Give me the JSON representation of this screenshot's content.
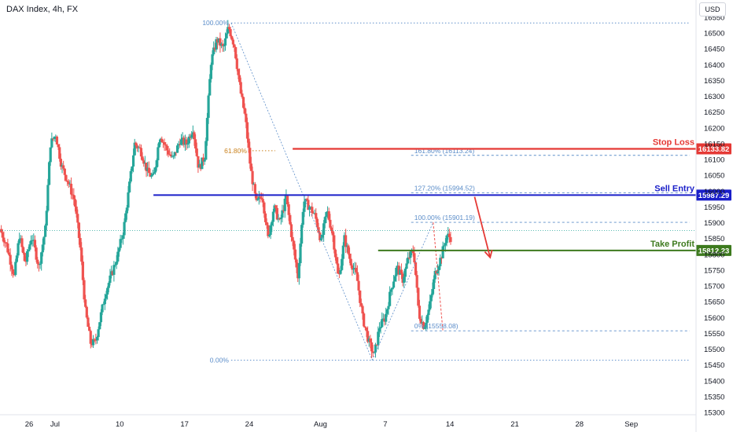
{
  "header": {
    "title": "DAX Index, 4h, FX",
    "currency": "USD"
  },
  "colors": {
    "up": "#26a69a",
    "down": "#ef5350",
    "stop": "#e53935",
    "entry": "#1a1fc9",
    "profit": "#3d7a1e",
    "fib": "#5b8dc9",
    "fib618": "#c9801a",
    "arrow": "#e53935"
  },
  "chart_data": {
    "type": "candlestick",
    "instrument": "DAX Index",
    "timeframe": "4h",
    "x_ticks": [
      {
        "label": "26",
        "x": 0
      },
      {
        "label": "Jul",
        "x": 4
      },
      {
        "label": "10",
        "x": 14
      },
      {
        "label": "17",
        "x": 24
      },
      {
        "label": "24",
        "x": 34
      },
      {
        "label": "Aug",
        "x": 45
      },
      {
        "label": "7",
        "x": 55
      },
      {
        "label": "14",
        "x": 65
      },
      {
        "label": "21",
        "x": 75
      },
      {
        "label": "28",
        "x": 85
      },
      {
        "label": "Sep",
        "x": 93
      }
    ],
    "xlim": [
      -4.5,
      103
    ],
    "ylim": [
      15300,
      16550
    ],
    "y_ticks": [
      15300,
      15350,
      15400,
      15450,
      15500,
      15550,
      15600,
      15650,
      15700,
      15750,
      15800,
      15850,
      15900,
      15950,
      16000,
      16050,
      16100,
      16150,
      16200,
      16250,
      16300,
      16350,
      16400,
      16450,
      16500,
      16550
    ],
    "waypoints": [
      [
        -4.5,
        15880
      ],
      [
        -3.5,
        15830
      ],
      [
        -2.3,
        15730
      ],
      [
        -1.5,
        15860
      ],
      [
        -0.6,
        15770
      ],
      [
        0.4,
        15860
      ],
      [
        1.5,
        15760
      ],
      [
        2.5,
        15880
      ],
      [
        3.3,
        16150
      ],
      [
        4.1,
        16180
      ],
      [
        5.0,
        16080
      ],
      [
        6.0,
        16030
      ],
      [
        7.0,
        15970
      ],
      [
        7.9,
        15820
      ],
      [
        8.7,
        15620
      ],
      [
        9.5,
        15520
      ],
      [
        10.2,
        15520
      ],
      [
        11,
        15600
      ],
      [
        11.8,
        15680
      ],
      [
        12.8,
        15740
      ],
      [
        13.7,
        15800
      ],
      [
        14.6,
        15880
      ],
      [
        15.5,
        16020
      ],
      [
        16.3,
        16150
      ],
      [
        17.2,
        16130
      ],
      [
        18.3,
        16060
      ],
      [
        19.2,
        16040
      ],
      [
        20.2,
        16180
      ],
      [
        21.3,
        16130
      ],
      [
        22.2,
        16100
      ],
      [
        23.3,
        16160
      ],
      [
        24.3,
        16150
      ],
      [
        25.3,
        16200
      ],
      [
        26.2,
        16070
      ],
      [
        27.1,
        16110
      ],
      [
        28.1,
        16410
      ],
      [
        29.0,
        16480
      ],
      [
        30.0,
        16450
      ],
      [
        30.8,
        16520
      ],
      [
        31.7,
        16460
      ],
      [
        32.6,
        16320
      ],
      [
        33.4,
        16230
      ],
      [
        34.2,
        16070
      ],
      [
        35.1,
        15960
      ],
      [
        36.0,
        15990
      ],
      [
        36.9,
        15850
      ],
      [
        37.8,
        15950
      ],
      [
        38.7,
        15900
      ],
      [
        39.7,
        15980
      ],
      [
        40.6,
        15850
      ],
      [
        41.5,
        15730
      ],
      [
        42.4,
        15970
      ],
      [
        43.3,
        15950
      ],
      [
        44.2,
        15920
      ],
      [
        45.1,
        15840
      ],
      [
        46.0,
        15940
      ],
      [
        46.9,
        15860
      ],
      [
        47.8,
        15720
      ],
      [
        48.7,
        15850
      ],
      [
        49.6,
        15780
      ],
      [
        50.6,
        15730
      ],
      [
        51.5,
        15600
      ],
      [
        52.5,
        15520
      ],
      [
        53.3,
        15480
      ],
      [
        54.1,
        15570
      ],
      [
        55.0,
        15600
      ],
      [
        55.9,
        15690
      ],
      [
        56.8,
        15760
      ],
      [
        57.7,
        15720
      ],
      [
        58.6,
        15790
      ],
      [
        59.4,
        15810
      ],
      [
        60.2,
        15610
      ],
      [
        61.0,
        15570
      ],
      [
        61.8,
        15630
      ],
      [
        62.7,
        15740
      ],
      [
        63.6,
        15790
      ],
      [
        64.5,
        15860
      ],
      [
        65.3,
        15850
      ]
    ],
    "fib_retracement": [
      {
        "label": "100.00%",
        "price": 16532
      },
      {
        "label": "61.80%",
        "price": 16128
      },
      {
        "label": "0.00%",
        "price": 15465
      }
    ],
    "fib_extension": [
      {
        "label": "161.80% (16113.24)",
        "price": 16113.24
      },
      {
        "label": "127.20% (15994.52)",
        "price": 15994.52
      },
      {
        "label": "100.00% (15901.19)",
        "price": 15901.19
      },
      {
        "label": "0% (15558.08)",
        "price": 15558.08
      }
    ],
    "levels": [
      {
        "name": "Stop Loss",
        "price": 16133.82,
        "tag": "16133.82"
      },
      {
        "name": "Sell Entry",
        "price": 15987.29,
        "tag": "15987.29"
      },
      {
        "name": "Take Profit",
        "price": 15812.23,
        "tag": "15812.23"
      }
    ]
  }
}
